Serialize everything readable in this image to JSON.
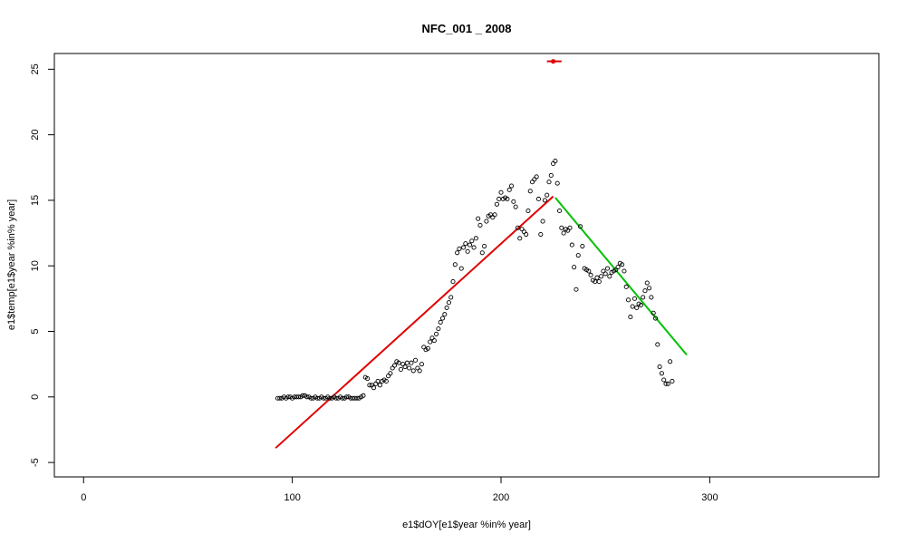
{
  "chart_data": {
    "type": "scatter",
    "title": "NFC_001 _ 2008",
    "xlabel": "e1$dOY[e1$year %in% year]",
    "ylabel": "e1$temp[e1$year %in% year]",
    "xlim": [
      -14,
      381
    ],
    "ylim": [
      -6.1,
      26.2
    ],
    "x_ticks": [
      0,
      100,
      200,
      300
    ],
    "y_ticks": [
      -5,
      0,
      5,
      10,
      15,
      20,
      25
    ],
    "grid": false,
    "legend": "none",
    "colors": {
      "points": "#000000",
      "rising_fit": "#e00000",
      "falling_fit": "#00c000",
      "peak_marker": "#e00000"
    },
    "series": [
      {
        "marker": "open-circle",
        "points": [
          [
            93,
            -0.1
          ],
          [
            94,
            -0.1
          ],
          [
            95,
            -0.1
          ],
          [
            96,
            0
          ],
          [
            97,
            -0.1
          ],
          [
            98,
            0
          ],
          [
            99,
            0
          ],
          [
            100,
            -0.1
          ],
          [
            101,
            0
          ],
          [
            102,
            0
          ],
          [
            103,
            0
          ],
          [
            104,
            0
          ],
          [
            105,
            0.1
          ],
          [
            106,
            0.1
          ],
          [
            107,
            0
          ],
          [
            108,
            0
          ],
          [
            109,
            -0.1
          ],
          [
            110,
            -0.1
          ],
          [
            111,
            0
          ],
          [
            112,
            -0.1
          ],
          [
            113,
            -0.1
          ],
          [
            114,
            0
          ],
          [
            115,
            -0.1
          ],
          [
            116,
            -0.1
          ],
          [
            117,
            0
          ],
          [
            118,
            -0.1
          ],
          [
            119,
            -0.1
          ],
          [
            120,
            0
          ],
          [
            121,
            -0.1
          ],
          [
            122,
            -0.1
          ],
          [
            123,
            0
          ],
          [
            124,
            -0.1
          ],
          [
            125,
            -0.1
          ],
          [
            126,
            0
          ],
          [
            127,
            0
          ],
          [
            128,
            -0.1
          ],
          [
            129,
            -0.1
          ],
          [
            130,
            -0.1
          ],
          [
            131,
            -0.1
          ],
          [
            132,
            -0.1
          ],
          [
            133,
            0
          ],
          [
            134,
            0.1
          ],
          [
            135,
            1.5
          ],
          [
            136,
            1.4
          ],
          [
            137,
            0.9
          ],
          [
            138,
            0.9
          ],
          [
            139,
            0.7
          ],
          [
            140,
            1.0
          ],
          [
            141,
            1.2
          ],
          [
            142,
            0.9
          ],
          [
            143,
            1.2
          ],
          [
            144,
            1.3
          ],
          [
            145,
            1.2
          ],
          [
            146,
            1.6
          ],
          [
            147,
            1.8
          ],
          [
            148,
            2.2
          ],
          [
            149,
            2.4
          ],
          [
            150,
            2.7
          ],
          [
            151,
            2.6
          ],
          [
            152,
            2.1
          ],
          [
            153,
            2.5
          ],
          [
            154,
            2.3
          ],
          [
            155,
            2.6
          ],
          [
            156,
            2.2
          ],
          [
            157,
            2.6
          ],
          [
            158,
            2.0
          ],
          [
            159,
            2.8
          ],
          [
            160,
            2.2
          ],
          [
            161,
            2.0
          ],
          [
            162,
            2.5
          ],
          [
            163,
            3.8
          ],
          [
            164,
            3.6
          ],
          [
            165,
            3.7
          ],
          [
            166,
            4.2
          ],
          [
            167,
            4.5
          ],
          [
            168,
            4.3
          ],
          [
            169,
            4.8
          ],
          [
            170,
            5.2
          ],
          [
            171,
            5.7
          ],
          [
            172,
            6.0
          ],
          [
            173,
            6.3
          ],
          [
            174,
            6.8
          ],
          [
            175,
            7.2
          ],
          [
            176,
            7.6
          ],
          [
            177,
            8.8
          ],
          [
            178,
            10.1
          ],
          [
            179,
            11.0
          ],
          [
            180,
            11.3
          ],
          [
            181,
            9.8
          ],
          [
            182,
            11.4
          ],
          [
            183,
            11.7
          ],
          [
            184,
            11.1
          ],
          [
            185,
            11.6
          ],
          [
            186,
            11.9
          ],
          [
            187,
            11.4
          ],
          [
            188,
            12.1
          ],
          [
            189,
            13.6
          ],
          [
            190,
            13.1
          ],
          [
            191,
            11.0
          ],
          [
            192,
            11.5
          ],
          [
            193,
            13.4
          ],
          [
            194,
            13.8
          ],
          [
            195,
            13.9
          ],
          [
            196,
            13.7
          ],
          [
            197,
            13.9
          ],
          [
            198,
            14.7
          ],
          [
            199,
            15.1
          ],
          [
            200,
            15.6
          ],
          [
            201,
            15.1
          ],
          [
            202,
            15.2
          ],
          [
            203,
            15.1
          ],
          [
            204,
            15.8
          ],
          [
            205,
            16.1
          ],
          [
            206,
            14.9
          ],
          [
            207,
            14.5
          ],
          [
            208,
            12.9
          ],
          [
            209,
            12.1
          ],
          [
            210,
            12.8
          ],
          [
            211,
            12.6
          ],
          [
            212,
            12.4
          ],
          [
            213,
            14.2
          ],
          [
            214,
            15.7
          ],
          [
            215,
            16.4
          ],
          [
            216,
            16.6
          ],
          [
            217,
            16.8
          ],
          [
            218,
            15.1
          ],
          [
            219,
            12.4
          ],
          [
            220,
            13.4
          ],
          [
            221,
            15.0
          ],
          [
            222,
            15.4
          ],
          [
            223,
            16.4
          ],
          [
            224,
            16.9
          ],
          [
            225,
            17.8
          ],
          [
            226,
            18.0
          ],
          [
            227,
            16.3
          ],
          [
            228,
            14.2
          ],
          [
            229,
            12.9
          ],
          [
            230,
            12.5
          ],
          [
            231,
            12.8
          ],
          [
            232,
            12.7
          ],
          [
            233,
            12.9
          ],
          [
            234,
            11.6
          ],
          [
            235,
            9.9
          ],
          [
            236,
            8.2
          ],
          [
            237,
            10.8
          ],
          [
            238,
            13.0
          ],
          [
            239,
            11.5
          ],
          [
            240,
            9.8
          ],
          [
            241,
            9.7
          ],
          [
            242,
            9.6
          ],
          [
            243,
            9.3
          ],
          [
            244,
            8.9
          ],
          [
            245,
            8.8
          ],
          [
            246,
            9.1
          ],
          [
            247,
            8.8
          ],
          [
            248,
            9.2
          ],
          [
            249,
            9.6
          ],
          [
            250,
            9.4
          ],
          [
            251,
            9.8
          ],
          [
            252,
            9.2
          ],
          [
            253,
            9.5
          ],
          [
            254,
            9.6
          ],
          [
            255,
            9.7
          ],
          [
            256,
            9.9
          ],
          [
            257,
            10.2
          ],
          [
            258,
            10.1
          ],
          [
            259,
            9.6
          ],
          [
            260,
            8.4
          ],
          [
            261,
            7.4
          ],
          [
            262,
            6.1
          ],
          [
            263,
            6.9
          ],
          [
            264,
            7.5
          ],
          [
            265,
            6.8
          ],
          [
            266,
            7.1
          ],
          [
            267,
            7.0
          ],
          [
            268,
            7.6
          ],
          [
            269,
            8.1
          ],
          [
            270,
            8.7
          ],
          [
            271,
            8.3
          ],
          [
            272,
            7.6
          ],
          [
            273,
            6.4
          ],
          [
            274,
            6.0
          ],
          [
            275,
            4.0
          ],
          [
            276,
            2.3
          ],
          [
            277,
            1.8
          ],
          [
            278,
            1.3
          ],
          [
            279,
            1.0
          ],
          [
            280,
            1.0
          ],
          [
            281,
            2.7
          ],
          [
            282,
            1.2
          ]
        ]
      },
      {
        "style": "line",
        "points": [
          [
            92,
            -3.9
          ],
          [
            225,
            15.3
          ]
        ]
      },
      {
        "style": "line",
        "points": [
          [
            226,
            15.2
          ],
          [
            289,
            3.2
          ]
        ]
      },
      {
        "style": "interval",
        "center": 225,
        "range": [
          222,
          229
        ],
        "y": 25.6
      }
    ]
  }
}
